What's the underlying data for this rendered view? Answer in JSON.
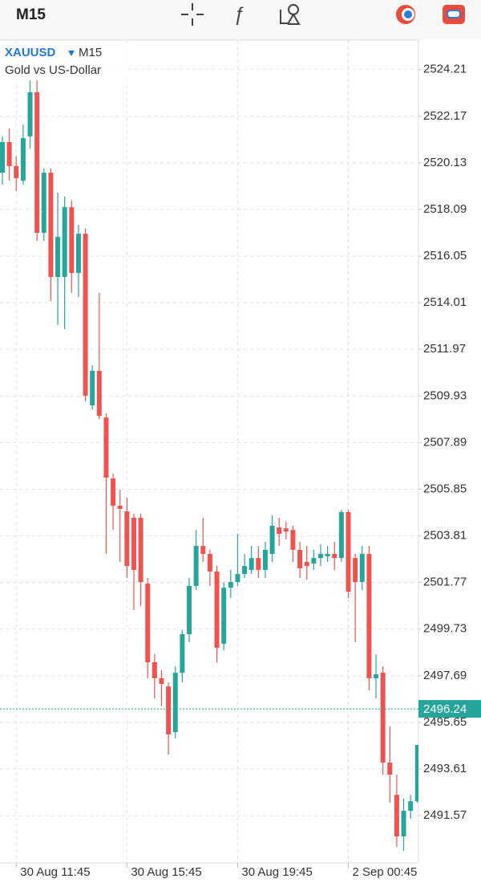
{
  "toolbar": {
    "timeframe": "M15"
  },
  "chart_data": {
    "type": "candlestick",
    "symbol": "XAUUSD",
    "timeframe": "M15",
    "description": "Gold vs US-Dollar",
    "up_color": "#26a69a",
    "down_color": "#ef5350",
    "grid": true,
    "categories": [
      null,
      null,
      "30 Aug 11:45",
      null,
      null,
      null,
      null,
      null,
      null,
      null,
      null,
      null,
      null,
      null,
      null,
      null,
      null,
      null,
      "30 Aug 15:45",
      null,
      null,
      null,
      null,
      null,
      null,
      null,
      null,
      null,
      null,
      null,
      null,
      null,
      null,
      null,
      "30 Aug 19:45",
      null,
      null,
      null,
      null,
      null,
      null,
      null,
      null,
      null,
      null,
      null,
      null,
      null,
      null,
      null,
      "2 Sep 00:45",
      null,
      null,
      null,
      null,
      null,
      null,
      null,
      null,
      null,
      null
    ],
    "open": [
      2519.7,
      2521.04,
      2519.99,
      2519.35,
      2521.29,
      2523.22,
      2517.07,
      2519.7,
      2515.14,
      2515.14,
      2518.19,
      2515.31,
      2517.03,
      2509.52,
      2511.03,
      2508.99,
      2506.32,
      2505.13,
      2504.88,
      2504.6,
      2504.6,
      2501.72,
      2498.28,
      2497.58,
      2497.22,
      2495.22,
      2497.82,
      2499.51,
      2501.62,
      2503.37,
      2503.02,
      2502.25,
      2499.09,
      2501.54,
      2501.79,
      2502.14,
      2502.32,
      2502.84,
      2502.32,
      2503.02,
      2504.18,
      2504.14,
      2504.07,
      2503.2,
      2502.67,
      2502.6,
      2502.84,
      2502.91,
      2503.02,
      2502.84,
      2504.85,
      2502.84,
      2501.79,
      2503.02,
      2497.58,
      2497.82,
      2493.89,
      2492.48,
      2490.66,
      2491.78,
      2492.2
    ],
    "high": [
      2521.29,
      2521.64,
      2520.41,
      2521.81,
      2523.74,
      2523.74,
      2519.88,
      2519.88,
      2518.83,
      2518.65,
      2518.48,
      2517.42,
      2517.25,
      2511.27,
      2514.44,
      2509.17,
      2506.53,
      2505.83,
      2505.48,
      2504.78,
      2504.78,
      2501.97,
      2498.63,
      2497.93,
      2497.4,
      2498.1,
      2499.68,
      2501.97,
      2504.07,
      2504.6,
      2503.2,
      2502.49,
      2501.79,
      2502.32,
      2503.9,
      2503.02,
      2503.37,
      2503.37,
      2503.55,
      2504.71,
      2504.6,
      2504.43,
      2504.25,
      2503.55,
      2503.37,
      2503.2,
      2503.44,
      2503.37,
      2503.55,
      2504.95,
      2504.95,
      2503.02,
      2503.37,
      2503.37,
      2498.63,
      2498.1,
      2495.47,
      2493.36,
      2492.31,
      2492.48,
      2494.66
    ],
    "low": [
      2519.18,
      2519.35,
      2518.9,
      2519.18,
      2520.76,
      2516.72,
      2516.72,
      2514.08,
      2513.03,
      2512.85,
      2514.44,
      2514.26,
      2509.69,
      2509.34,
      2508.92,
      2503.02,
      2504.07,
      2502.67,
      2501.97,
      2500.56,
      2500.74,
      2497.58,
      2496.7,
      2496.35,
      2494.24,
      2494.94,
      2497.4,
      2499.16,
      2501.44,
      2502.67,
      2501.62,
      2498.28,
      2498.8,
      2501.09,
      2501.62,
      2501.97,
      2502.14,
      2501.97,
      2501.97,
      2502.67,
      2503.37,
      2503.65,
      2502.67,
      2501.97,
      2501.9,
      2502.32,
      2502.49,
      2502.67,
      2502.32,
      2502.67,
      2501.09,
      2499.16,
      2501.44,
      2497.05,
      2496.7,
      2493.36,
      2492.13,
      2490.2,
      2490.02,
      2491.43,
      2492.13
    ],
    "close": [
      2521.04,
      2519.99,
      2519.46,
      2521.21,
      2523.22,
      2517.07,
      2519.7,
      2515.14,
      2516.89,
      2518.19,
      2515.31,
      2517.03,
      2509.94,
      2511.03,
      2509.06,
      2506.36,
      2505.13,
      2504.99,
      2502.49,
      2502.32,
      2501.79,
      2498.28,
      2497.58,
      2497.33,
      2495.12,
      2497.82,
      2499.51,
      2501.62,
      2503.37,
      2503.02,
      2502.25,
      2498.91,
      2501.54,
      2501.79,
      2502.14,
      2502.49,
      2502.84,
      2502.32,
      2503.2,
      2504.25,
      2503.9,
      2504.0,
      2503.2,
      2502.39,
      2502.49,
      2502.84,
      2503.02,
      2503.02,
      2502.84,
      2504.85,
      2501.37,
      2501.79,
      2503.02,
      2497.58,
      2497.75,
      2493.89,
      2493.36,
      2490.66,
      2491.78,
      2492.2,
      2494.66
    ],
    "last_price": 2496.24,
    "ylim": [
      2489.5,
      2525.5
    ],
    "yticks": [
      2524.21,
      2522.17,
      2520.13,
      2518.09,
      2516.05,
      2514.01,
      2511.97,
      2509.93,
      2507.89,
      2505.85,
      2503.81,
      2501.77,
      2499.73,
      2497.69,
      2495.65,
      2493.61,
      2491.57
    ]
  }
}
